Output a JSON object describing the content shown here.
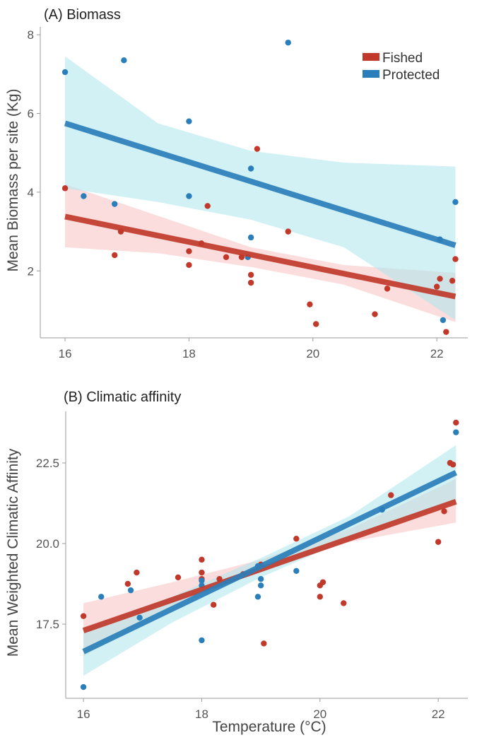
{
  "colors": {
    "fished": "#C0392B",
    "protected": "#2A7FBA",
    "fished_band": "#F9C6C6",
    "protected_band": "#B3E8EE"
  },
  "x_title": "Temperature (°C)",
  "chart_data": [
    {
      "type": "scatter",
      "title": "(A)   Biomass",
      "xlabel": "",
      "ylabel": "Mean Biomass per site (Kg)",
      "xlim": [
        15.6,
        22.5
      ],
      "ylim": [
        0.3,
        8.2
      ],
      "xticks": [
        16,
        18,
        20,
        22
      ],
      "yticks": [
        2,
        4,
        6,
        8
      ],
      "legend": {
        "position": "top-right",
        "entries": [
          "Fished",
          "Protected"
        ]
      },
      "series": [
        {
          "name": "Fished",
          "color": "#C0392B",
          "points": [
            [
              16.0,
              4.1
            ],
            [
              16.9,
              3.0
            ],
            [
              16.8,
              2.4
            ],
            [
              18.0,
              2.5
            ],
            [
              18.0,
              2.15
            ],
            [
              18.2,
              2.7
            ],
            [
              18.3,
              3.65
            ],
            [
              18.6,
              2.35
            ],
            [
              18.85,
              2.35
            ],
            [
              19.0,
              1.9
            ],
            [
              19.0,
              1.7
            ],
            [
              19.1,
              5.1
            ],
            [
              19.6,
              3.0
            ],
            [
              19.95,
              1.15
            ],
            [
              20.05,
              0.65
            ],
            [
              21.0,
              0.9
            ],
            [
              21.2,
              1.55
            ],
            [
              22.0,
              1.6
            ],
            [
              22.05,
              1.8
            ],
            [
              22.15,
              0.45
            ],
            [
              22.25,
              1.75
            ],
            [
              22.3,
              2.3
            ]
          ],
          "fit": {
            "x": [
              16.0,
              22.3
            ],
            "y": [
              3.38,
              1.35
            ]
          },
          "band": {
            "x": [
              16.0,
              17.5,
              19.0,
              20.5,
              22.3
            ],
            "lower": [
              2.6,
              2.45,
              2.1,
              1.65,
              0.7
            ],
            "upper": [
              4.2,
              3.4,
              2.6,
              2.15,
              1.95
            ]
          }
        },
        {
          "name": "Protected",
          "color": "#2A7FBA",
          "points": [
            [
              16.0,
              7.05
            ],
            [
              16.3,
              3.9
            ],
            [
              16.8,
              3.7
            ],
            [
              16.95,
              7.35
            ],
            [
              18.0,
              5.8
            ],
            [
              18.0,
              3.9
            ],
            [
              19.0,
              4.6
            ],
            [
              19.0,
              2.85
            ],
            [
              18.95,
              2.35
            ],
            [
              19.6,
              7.8
            ],
            [
              22.05,
              2.8
            ],
            [
              22.1,
              0.75
            ],
            [
              22.3,
              3.75
            ]
          ],
          "fit": {
            "x": [
              16.0,
              22.3
            ],
            "y": [
              5.75,
              2.65
            ]
          },
          "band": {
            "x": [
              16.0,
              17.5,
              19.0,
              20.5,
              22.3
            ],
            "lower": [
              4.1,
              3.75,
              3.3,
              2.6,
              0.75
            ],
            "upper": [
              7.45,
              5.75,
              5.05,
              4.75,
              4.65
            ]
          }
        }
      ]
    },
    {
      "type": "scatter",
      "title": "(B)   Climatic affinity",
      "xlabel": "Temperature (°C)",
      "ylabel": "Mean Weighted Climatic Affinity",
      "xlim": [
        15.7,
        22.5
      ],
      "ylim": [
        15.2,
        24.1
      ],
      "xticks": [
        16,
        18,
        20,
        22
      ],
      "yticks": [
        17.5,
        20.0,
        22.5
      ],
      "series": [
        {
          "name": "Fished",
          "color": "#C0392B",
          "points": [
            [
              16.0,
              17.75
            ],
            [
              16.75,
              18.75
            ],
            [
              16.9,
              19.1
            ],
            [
              17.6,
              18.95
            ],
            [
              18.0,
              19.5
            ],
            [
              18.0,
              19.1
            ],
            [
              18.0,
              18.9
            ],
            [
              18.2,
              18.1
            ],
            [
              18.3,
              18.9
            ],
            [
              18.7,
              19.05
            ],
            [
              19.0,
              19.35
            ],
            [
              19.05,
              16.9
            ],
            [
              19.6,
              20.15
            ],
            [
              20.0,
              18.7
            ],
            [
              20.05,
              18.8
            ],
            [
              20.0,
              18.35
            ],
            [
              20.4,
              18.15
            ],
            [
              21.2,
              21.5
            ],
            [
              22.0,
              20.05
            ],
            [
              22.1,
              21.0
            ],
            [
              22.2,
              22.5
            ],
            [
              22.25,
              22.45
            ],
            [
              22.3,
              23.75
            ]
          ],
          "fit": {
            "x": [
              16.0,
              22.3
            ],
            "y": [
              17.3,
              21.3
            ]
          },
          "band": {
            "x": [
              16.0,
              17.5,
              19.0,
              20.5,
              22.3
            ],
            "lower": [
              16.5,
              18.05,
              19.15,
              20.05,
              20.65
            ],
            "upper": [
              18.15,
              18.8,
              19.5,
              20.45,
              22.0
            ]
          }
        },
        {
          "name": "Protected",
          "color": "#2A7FBA",
          "points": [
            [
              16.0,
              15.55
            ],
            [
              16.3,
              18.35
            ],
            [
              16.8,
              18.55
            ],
            [
              16.95,
              17.7
            ],
            [
              18.0,
              17.0
            ],
            [
              18.0,
              18.85
            ],
            [
              18.0,
              18.7
            ],
            [
              18.95,
              19.3
            ],
            [
              19.0,
              18.9
            ],
            [
              19.0,
              18.7
            ],
            [
              18.95,
              18.35
            ],
            [
              19.6,
              19.15
            ],
            [
              21.05,
              21.05
            ],
            [
              22.3,
              23.45
            ]
          ],
          "fit": {
            "x": [
              16.0,
              22.3
            ],
            "y": [
              16.65,
              22.2
            ]
          },
          "band": {
            "x": [
              16.0,
              17.5,
              19.0,
              20.5,
              22.3
            ],
            "lower": [
              15.9,
              17.55,
              18.95,
              20.15,
              21.35
            ],
            "upper": [
              17.35,
              18.35,
              19.55,
              20.85,
              23.05
            ]
          }
        }
      ]
    }
  ]
}
